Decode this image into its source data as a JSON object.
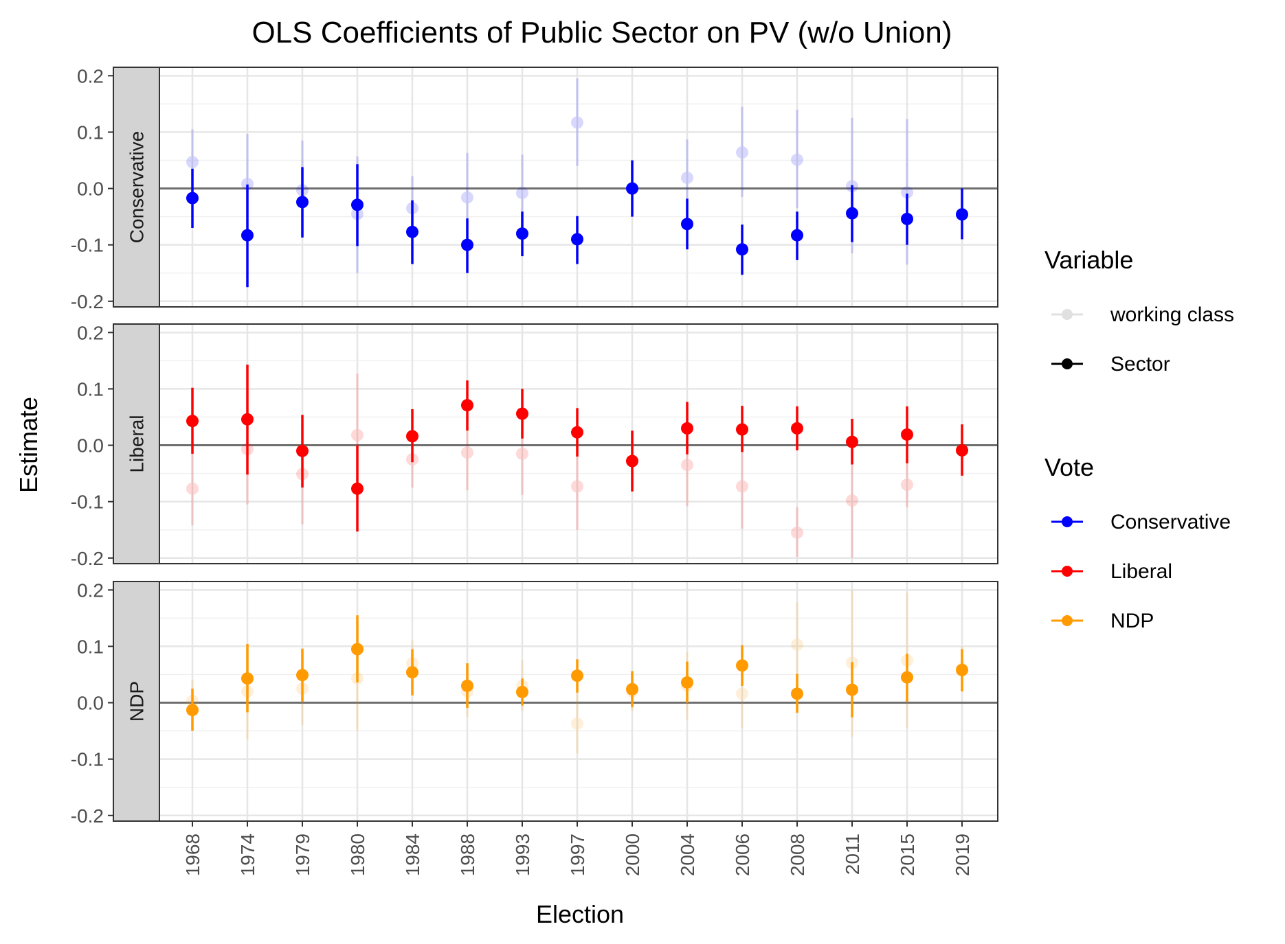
{
  "chart_data": {
    "type": "scatter",
    "title": "OLS Coefficients of Public Sector on PV (w/o Union)",
    "xlabel": "Election",
    "ylabel": "Estimate",
    "categories": [
      "1968",
      "1974",
      "1979",
      "1980",
      "1984",
      "1988",
      "1993",
      "1997",
      "2000",
      "2004",
      "2006",
      "2008",
      "2011",
      "2015",
      "2019"
    ],
    "yticks": [
      "0.2",
      "0.1",
      "0.0",
      "-0.1",
      "-0.2"
    ],
    "ylim": [
      -0.21,
      0.215
    ],
    "grid": true,
    "legend_position": "right",
    "legend": {
      "variable": {
        "title": "Variable",
        "items": [
          "working class",
          "Sector"
        ]
      },
      "vote": {
        "title": "Vote",
        "items": [
          "Conservative",
          "Liberal",
          "NDP"
        ]
      }
    },
    "colors": {
      "Conservative": "#0000ff",
      "Liberal": "#ff0000",
      "NDP": "#ff9a00",
      "Sector": "#000000",
      "working class": "#bbbbbb"
    },
    "panels": [
      {
        "name": "Conservative",
        "series": [
          {
            "name": "Sector",
            "values": [
              -0.017,
              -0.083,
              -0.024,
              -0.029,
              -0.077,
              -0.1,
              -0.08,
              -0.09,
              0.0,
              -0.063,
              -0.108,
              -0.083,
              -0.044,
              -0.054,
              -0.046
            ],
            "lower": [
              -0.07,
              -0.175,
              -0.087,
              -0.102,
              -0.134,
              -0.15,
              -0.12,
              -0.134,
              -0.05,
              -0.108,
              -0.153,
              -0.127,
              -0.095,
              -0.1,
              -0.09
            ],
            "upper": [
              0.035,
              0.007,
              0.038,
              0.043,
              -0.021,
              -0.053,
              -0.041,
              -0.049,
              0.05,
              -0.018,
              -0.064,
              -0.041,
              0.006,
              -0.009,
              0.0
            ]
          },
          {
            "name": "working class",
            "values": [
              0.047,
              0.008,
              -0.003,
              -0.045,
              -0.035,
              -0.016,
              -0.008,
              0.117,
              0.0,
              0.019,
              0.064,
              0.051,
              0.004,
              -0.007,
              -0.045
            ],
            "lower": [
              -0.01,
              -0.08,
              -0.085,
              -0.15,
              -0.09,
              -0.09,
              -0.075,
              0.04,
              -0.04,
              -0.05,
              -0.015,
              -0.035,
              -0.115,
              -0.135,
              -0.09
            ],
            "upper": [
              0.105,
              0.097,
              0.085,
              0.057,
              0.022,
              0.063,
              0.06,
              0.195,
              0.04,
              0.087,
              0.145,
              0.14,
              0.125,
              0.123,
              0.0
            ]
          }
        ]
      },
      {
        "name": "Liberal",
        "series": [
          {
            "name": "Sector",
            "values": [
              0.043,
              0.046,
              -0.01,
              -0.077,
              0.016,
              0.071,
              0.056,
              0.023,
              -0.028,
              0.03,
              0.028,
              0.03,
              0.006,
              0.019,
              -0.009
            ],
            "lower": [
              -0.015,
              -0.052,
              -0.075,
              -0.153,
              -0.03,
              0.026,
              0.012,
              -0.02,
              -0.082,
              -0.016,
              -0.012,
              -0.009,
              -0.034,
              -0.032,
              -0.054
            ],
            "upper": [
              0.102,
              0.143,
              0.054,
              0.0,
              0.064,
              0.115,
              0.1,
              0.066,
              0.026,
              0.077,
              0.07,
              0.069,
              0.047,
              0.069,
              0.037
            ]
          },
          {
            "name": "working class",
            "values": [
              -0.077,
              -0.007,
              -0.051,
              0.018,
              -0.025,
              -0.013,
              -0.015,
              -0.073,
              -0.028,
              -0.035,
              -0.073,
              -0.155,
              -0.098,
              -0.07,
              -0.009
            ],
            "lower": [
              -0.142,
              -0.105,
              -0.14,
              -0.09,
              -0.075,
              -0.08,
              -0.088,
              -0.15,
              -0.07,
              -0.108,
              -0.148,
              -0.198,
              -0.2,
              -0.11,
              -0.05
            ],
            "upper": [
              -0.01,
              0.09,
              0.037,
              0.127,
              0.025,
              0.053,
              0.058,
              0.0,
              0.02,
              0.037,
              0.0,
              -0.11,
              0.0,
              -0.03,
              0.03
            ]
          }
        ]
      },
      {
        "name": "NDP",
        "series": [
          {
            "name": "Sector",
            "values": [
              -0.013,
              0.043,
              0.049,
              0.095,
              0.054,
              0.03,
              0.019,
              0.048,
              0.024,
              0.036,
              0.066,
              0.016,
              0.023,
              0.045,
              0.058
            ],
            "lower": [
              -0.05,
              -0.017,
              0.002,
              0.036,
              0.013,
              -0.009,
              -0.005,
              0.018,
              -0.008,
              0.0,
              0.03,
              -0.018,
              -0.026,
              0.002,
              0.02
            ],
            "upper": [
              0.025,
              0.104,
              0.096,
              0.155,
              0.095,
              0.07,
              0.043,
              0.077,
              0.056,
              0.073,
              0.102,
              0.051,
              0.072,
              0.087,
              0.095
            ]
          },
          {
            "name": "working class",
            "values": [
              0.003,
              0.02,
              0.025,
              0.043,
              0.07,
              0.02,
              0.03,
              -0.037,
              0.02,
              0.03,
              0.016,
              0.103,
              0.071,
              0.075,
              0.06
            ],
            "lower": [
              -0.035,
              -0.065,
              -0.04,
              -0.05,
              0.03,
              -0.025,
              -0.015,
              -0.09,
              -0.015,
              -0.03,
              -0.045,
              0.03,
              -0.06,
              -0.045,
              0.02
            ],
            "upper": [
              0.04,
              0.105,
              0.09,
              0.135,
              0.11,
              0.065,
              0.075,
              0.02,
              0.055,
              0.09,
              0.08,
              0.178,
              0.2,
              0.195,
              0.1
            ]
          }
        ]
      }
    ]
  }
}
